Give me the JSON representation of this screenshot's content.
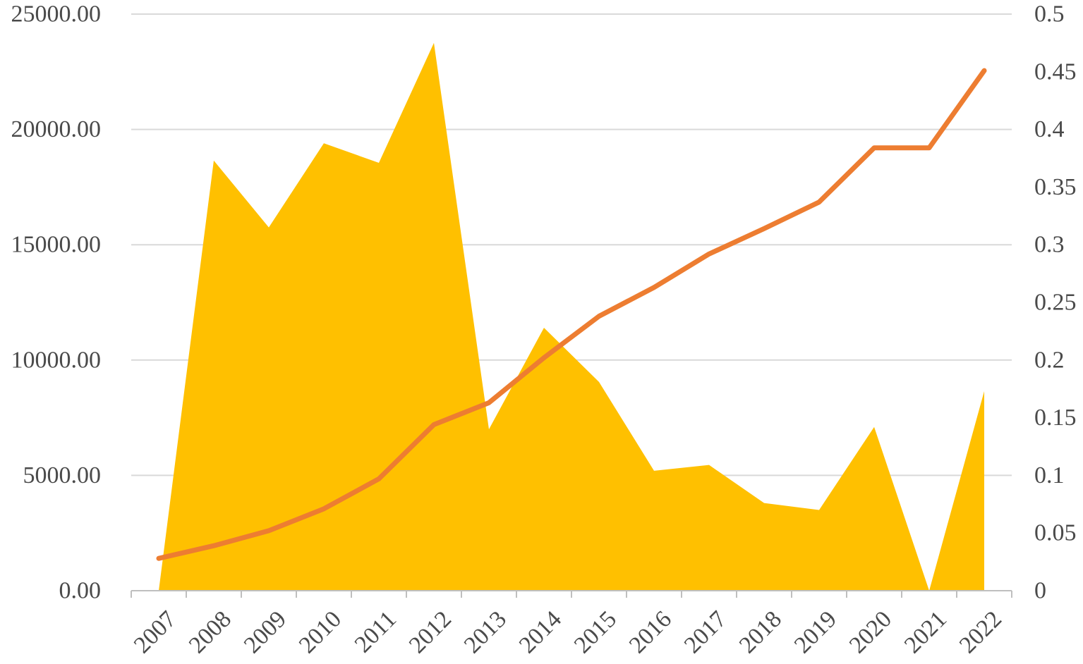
{
  "chart_data": {
    "type": "area",
    "title": "",
    "xlabel": "",
    "ylabel": "",
    "y2label": "",
    "categories": [
      "2007",
      "2008",
      "2009",
      "2010",
      "2011",
      "2012",
      "2013",
      "2014",
      "2015",
      "2016",
      "2017",
      "2018",
      "2019",
      "2020",
      "2021",
      "2022"
    ],
    "series": [
      {
        "type": "area",
        "axis": "left",
        "color": "#FFC000",
        "values": [
          0,
          18650,
          15750,
          19400,
          18550,
          23750,
          7000,
          11400,
          9050,
          5200,
          5450,
          3800,
          3500,
          7100,
          0,
          8650
        ]
      },
      {
        "type": "line",
        "axis": "right",
        "color": "#ED7D31",
        "values": [
          0.028,
          0.039,
          0.052,
          0.071,
          0.097,
          0.144,
          0.163,
          0.202,
          0.238,
          0.263,
          0.292,
          0.314,
          0.337,
          0.384,
          0.384,
          0.451
        ]
      }
    ],
    "ylim": [
      0,
      25000
    ],
    "y2lim": [
      0,
      0.5
    ],
    "yticks": [
      "0.00",
      "5000.00",
      "10000.00",
      "15000.00",
      "20000.00",
      "25000.00"
    ],
    "y2ticks": [
      "0",
      "0.05",
      "0.1",
      "0.15",
      "0.2",
      "0.25",
      "0.3",
      "0.35",
      "0.4",
      "0.45",
      "0.5"
    ],
    "grid": true,
    "legend": "none"
  }
}
